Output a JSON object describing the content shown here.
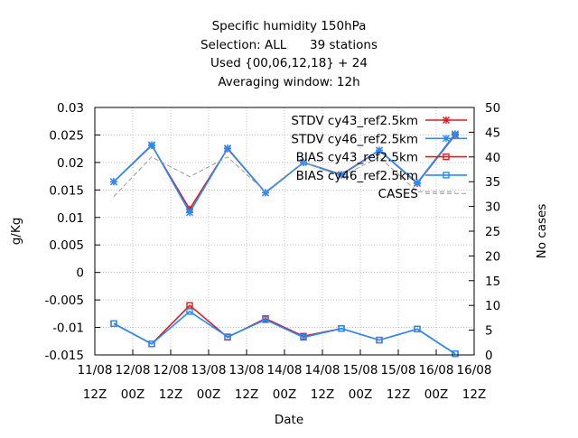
{
  "chart_data": {
    "type": "line",
    "title_lines": [
      "Specific humidity 150hPa",
      "Selection: ALL      39 stations",
      "Used {00,06,12,18} + 24",
      "Averaging window: 12h"
    ],
    "xlabel": "Date",
    "ylabel": "g/Kg",
    "y2label": "No cases",
    "ylim": [
      -0.015,
      0.03
    ],
    "y2lim": [
      0,
      50
    ],
    "yticks": [
      "-0.015",
      "-0.01",
      "-0.005",
      "0",
      "0.005",
      "0.01",
      "0.015",
      "0.02",
      "0.025",
      "0.03"
    ],
    "y2ticks": [
      "0",
      "5",
      "10",
      "15",
      "20",
      "25",
      "30",
      "35",
      "40",
      "45",
      "50"
    ],
    "xticks": [
      {
        "line1": "11/08",
        "line2": "12Z"
      },
      {
        "line1": "12/08",
        "line2": "00Z"
      },
      {
        "line1": "12/08",
        "line2": "12Z"
      },
      {
        "line1": "13/08",
        "line2": "00Z"
      },
      {
        "line1": "13/08",
        "line2": "12Z"
      },
      {
        "line1": "14/08",
        "line2": "00Z"
      },
      {
        "line1": "14/08",
        "line2": "12Z"
      },
      {
        "line1": "15/08",
        "line2": "00Z"
      },
      {
        "line1": "15/08",
        "line2": "12Z"
      },
      {
        "line1": "16/08",
        "line2": "00Z"
      },
      {
        "line1": "16/08",
        "line2": "12Z"
      }
    ],
    "x_point_positions": [
      0.5,
      1.5,
      2.5,
      3.5,
      4.5,
      5.5,
      6.5,
      7.5,
      8.5,
      9.5
    ],
    "series": [
      {
        "name": "STDV cy43_ref2.5km",
        "axis": "y1",
        "color": "#e41a1c",
        "marker": "star",
        "values": [
          0.0165,
          0.0231,
          0.0115,
          0.0225,
          0.0145,
          0.02,
          0.0178,
          0.0222,
          0.0162,
          0.025
        ]
      },
      {
        "name": "STDV cy46_ref2.5km",
        "axis": "y1",
        "color": "#1f8fff",
        "marker": "star",
        "values": [
          0.0165,
          0.0232,
          0.0109,
          0.0226,
          0.0145,
          0.02,
          0.0177,
          0.0222,
          0.0163,
          0.0252
        ]
      },
      {
        "name": "BIAS cy43_ref2.5km",
        "axis": "y1",
        "color": "#e41a1c",
        "marker": "square",
        "values": [
          -0.0093,
          -0.013,
          -0.006,
          -0.0118,
          -0.0084,
          -0.0116,
          -0.0102,
          -0.0123,
          -0.0103,
          -0.0148
        ]
      },
      {
        "name": "BIAS cy46_ref2.5km",
        "axis": "y1",
        "color": "#1f8fff",
        "marker": "square",
        "values": [
          -0.0093,
          -0.013,
          -0.0071,
          -0.0117,
          -0.0086,
          -0.0118,
          -0.0102,
          -0.0123,
          -0.0103,
          -0.0148
        ]
      },
      {
        "name": "CASES",
        "axis": "y2",
        "color": "#999999",
        "marker": "none",
        "dashed": true,
        "values": [
          32,
          40,
          36,
          40,
          33,
          39,
          36,
          40,
          33,
          33
        ]
      }
    ],
    "legend_position": "top-right"
  },
  "colors": {
    "red": "#e41a1c",
    "blue": "#1f8fff",
    "gray": "#999999",
    "axis": "#000000",
    "grid": "#a0a0a0"
  }
}
